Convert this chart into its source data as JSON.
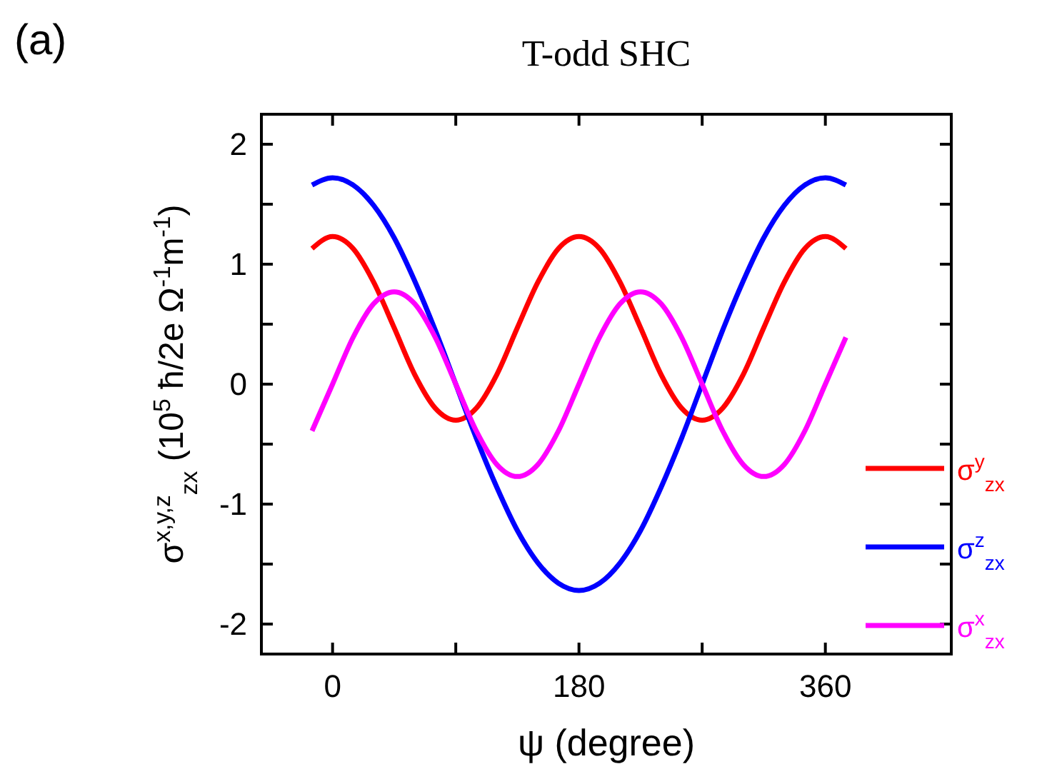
{
  "chart_data": {
    "type": "line",
    "title": "T-odd SHC",
    "xlabel": "ψ (degree)",
    "ylabel": "σ$^{x,y,z}$$_{zx}$ (10$^{5}$ ħ/2e Ω$^{-1}$m$^{-1}$)",
    "annotations": [
      "(a)"
    ],
    "x": [
      -15,
      0,
      15,
      30,
      45,
      60,
      75,
      90,
      105,
      120,
      135,
      150,
      165,
      180,
      195,
      210,
      225,
      240,
      255,
      270,
      285,
      300,
      315,
      330,
      345,
      360,
      375
    ],
    "xlim": [
      -52,
      452
    ],
    "xticks": [
      0,
      {
        "value": 90,
        "label": null
      },
      180,
      {
        "value": 270,
        "label": null
      },
      360
    ],
    "ylim": [
      -2.25,
      2.25
    ],
    "yticks": [
      -2,
      {
        "value": -1.5,
        "label": null
      },
      -1,
      {
        "value": -0.5,
        "label": null
      },
      0,
      {
        "value": 0.5,
        "label": null
      },
      1,
      {
        "value": 1.5,
        "label": null
      },
      2
    ],
    "grid": false,
    "legend": "bottom right",
    "marker": "none",
    "line_style": "solid",
    "series": [
      {
        "name": "σ$^{y}$$_{zx}$",
        "color": "#ff0000",
        "values": [
          1.13,
          1.23,
          1.13,
          0.85,
          0.47,
          0.08,
          -0.2,
          -0.3,
          -0.2,
          0.08,
          0.47,
          0.85,
          1.13,
          1.23,
          1.13,
          0.85,
          0.47,
          0.08,
          -0.2,
          -0.3,
          -0.2,
          0.08,
          0.47,
          0.85,
          1.13,
          1.23,
          1.13
        ]
      },
      {
        "name": "σ$^{z}$$_{zx}$",
        "color": "#0000ff",
        "values": [
          1.66,
          1.72,
          1.66,
          1.49,
          1.22,
          0.86,
          0.45,
          0,
          -0.45,
          -0.86,
          -1.22,
          -1.49,
          -1.66,
          -1.72,
          -1.66,
          -1.49,
          -1.22,
          -0.86,
          -0.45,
          0,
          0.45,
          0.86,
          1.22,
          1.49,
          1.66,
          1.72,
          1.66
        ]
      },
      {
        "name": "σ$^{x}$$_{zx}$",
        "color": "#ff00ff",
        "values": [
          -0.39,
          0,
          0.39,
          0.67,
          0.77,
          0.67,
          0.39,
          0,
          -0.39,
          -0.67,
          -0.77,
          -0.67,
          -0.39,
          0,
          0.39,
          0.67,
          0.77,
          0.67,
          0.39,
          0,
          -0.39,
          -0.67,
          -0.77,
          -0.67,
          -0.39,
          0,
          0.39
        ]
      }
    ]
  }
}
